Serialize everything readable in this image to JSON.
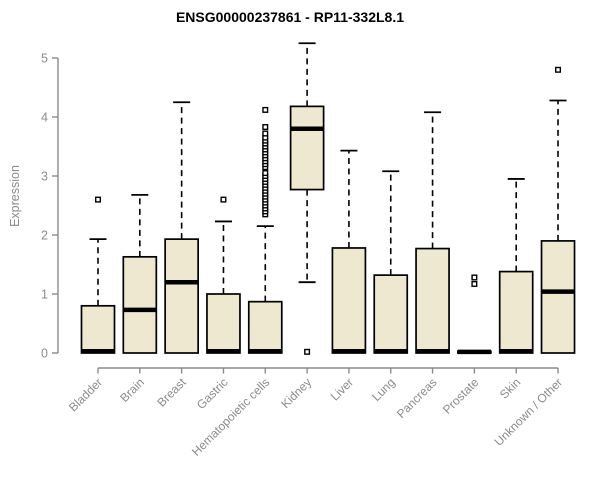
{
  "chart_data": {
    "type": "boxplot",
    "title": "ENSG00000237861 - RP11-332L8.1",
    "ylabel": "Expression",
    "xlabel": "",
    "ylim": [
      0,
      5
    ],
    "yticks": [
      0,
      1,
      2,
      3,
      4,
      5
    ],
    "grid": false,
    "legend": "none",
    "categories": [
      "Bladder",
      "Brain",
      "Breast",
      "Gastric",
      "Hematopoietic cells",
      "Kidney",
      "Liver",
      "Lung",
      "Pancreas",
      "Prostate",
      "Skin",
      "Unknown / Other"
    ],
    "series": [
      {
        "category": "Bladder",
        "whisker_low": 0,
        "q1": 0,
        "median": 0.03,
        "q3": 0.8,
        "whisker_high": 1.93,
        "outliers": [
          2.6
        ]
      },
      {
        "category": "Brain",
        "whisker_low": 0,
        "q1": 0,
        "median": 0.73,
        "q3": 1.63,
        "whisker_high": 2.68,
        "outliers": []
      },
      {
        "category": "Breast",
        "whisker_low": 0,
        "q1": 0,
        "median": 1.2,
        "q3": 1.93,
        "whisker_high": 4.25,
        "outliers": []
      },
      {
        "category": "Gastric",
        "whisker_low": 0,
        "q1": 0,
        "median": 0.03,
        "q3": 1.0,
        "whisker_high": 2.23,
        "outliers": [
          2.6
        ]
      },
      {
        "category": "Hematopoietic cells",
        "whisker_low": 0,
        "q1": 0,
        "median": 0.03,
        "q3": 0.87,
        "whisker_high": 2.15,
        "outliers": [
          2.35,
          2.4,
          2.45,
          2.5,
          2.55,
          2.6,
          2.65,
          2.7,
          2.75,
          2.8,
          2.85,
          2.9,
          2.95,
          3.0,
          3.05,
          3.15,
          3.2,
          3.25,
          3.3,
          3.35,
          3.4,
          3.45,
          3.5,
          3.55,
          3.6,
          3.65,
          3.72,
          3.83,
          4.12
        ]
      },
      {
        "category": "Kidney",
        "whisker_low": 1.2,
        "q1": 2.77,
        "median": 3.8,
        "q3": 4.18,
        "whisker_high": 5.25,
        "outliers": [
          0.02
        ]
      },
      {
        "category": "Liver",
        "whisker_low": 0,
        "q1": 0,
        "median": 0.03,
        "q3": 1.78,
        "whisker_high": 3.43,
        "outliers": []
      },
      {
        "category": "Lung",
        "whisker_low": 0,
        "q1": 0,
        "median": 0.03,
        "q3": 1.32,
        "whisker_high": 3.08,
        "outliers": []
      },
      {
        "category": "Pancreas",
        "whisker_low": 0,
        "q1": 0,
        "median": 0.03,
        "q3": 1.77,
        "whisker_high": 4.08,
        "outliers": []
      },
      {
        "category": "Prostate",
        "whisker_low": 0,
        "q1": 0,
        "median": 0.02,
        "q3": 0.03,
        "whisker_high": 0.03,
        "outliers": [
          1.17,
          1.28
        ]
      },
      {
        "category": "Skin",
        "whisker_low": 0,
        "q1": 0,
        "median": 0.03,
        "q3": 1.38,
        "whisker_high": 2.95,
        "outliers": []
      },
      {
        "category": "Unknown / Other",
        "whisker_low": 0,
        "q1": 0,
        "median": 1.04,
        "q3": 1.9,
        "whisker_high": 4.28,
        "outliers": [
          4.8
        ]
      }
    ],
    "colors": {
      "background": "#ffffff",
      "box_fill": "#ede8cf",
      "box_border": "#000000",
      "median": "#000000",
      "whisker": "#000000",
      "outlier_stroke": "#000000",
      "axis": "#8b8b8b",
      "axis_text": "#8b8b8b",
      "title_text": "#000000"
    }
  }
}
